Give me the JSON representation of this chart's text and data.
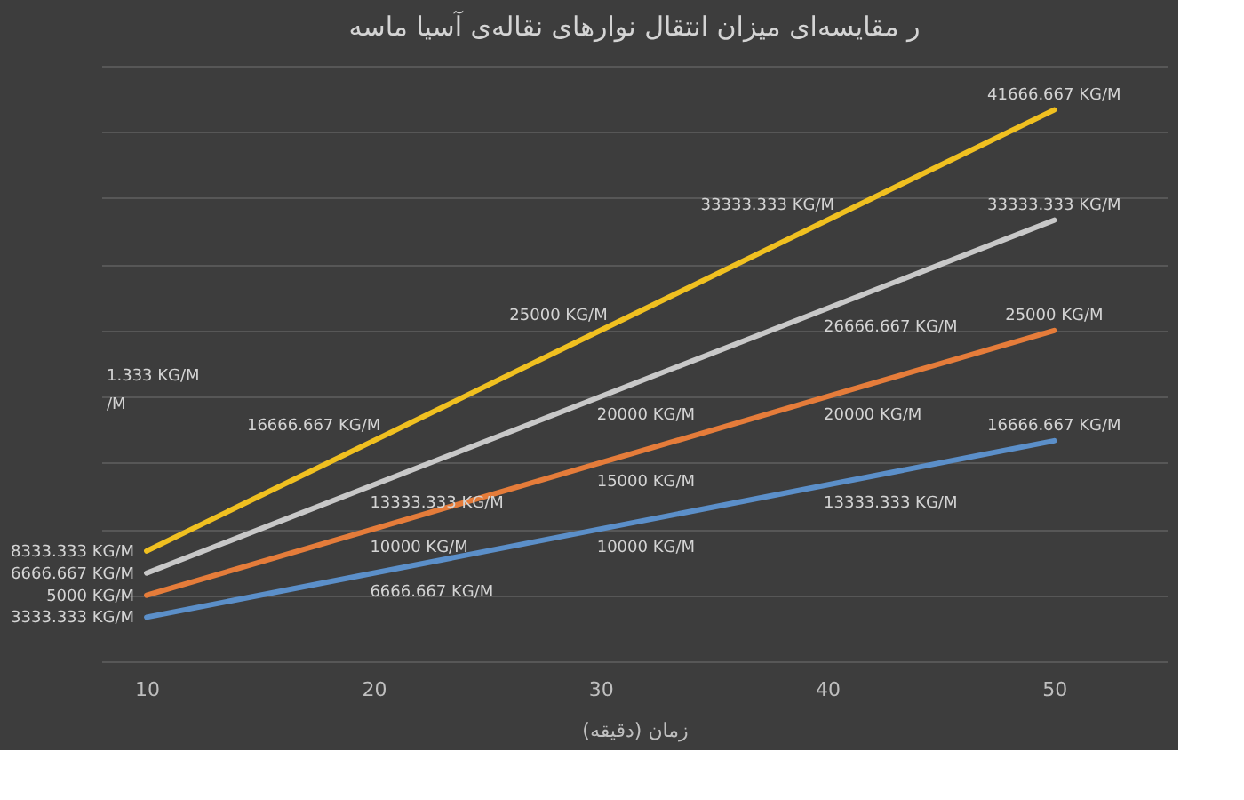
{
  "chart_data": {
    "type": "line",
    "title": "ر مقایسه‌ای میزان انتقال نوارهای نقاله‌ی آسیا ماسه",
    "xlabel": "زمان (دقیقه)",
    "x": [
      10,
      20,
      30,
      40,
      50
    ],
    "xlim": [
      8,
      55
    ],
    "xticks": [
      10,
      20,
      30,
      40,
      50
    ],
    "grid": "y",
    "tick_labels": "x",
    "marker": "none",
    "line_style": "solid",
    "legend": false,
    "series": [
      {
        "color": "#f0c020",
        "values": [
          8333.333,
          16666.667,
          25000,
          33333.333,
          41666.667
        ],
        "value_labels": [
          "8333.333 KG/M",
          "16666.667 KG/M",
          "25000 KG/M",
          "33333.333 KG/M",
          "41666.667 KG/M"
        ]
      },
      {
        "color": "#c8c8c8",
        "values": [
          6666.667,
          13333.333,
          20000,
          26666.667,
          33333.333
        ],
        "value_labels": [
          "6666.667 KG/M",
          "13333.333 KG/M",
          "20000 KG/M",
          "26666.667 KG/M",
          "33333.333 KG/M"
        ]
      },
      {
        "color": "#e57c3a",
        "values": [
          5000,
          10000,
          15000,
          20000,
          25000
        ],
        "value_labels": [
          "5000 KG/M",
          "10000 KG/M",
          "15000 KG/M",
          "20000 KG/M",
          "25000 KG/M"
        ]
      },
      {
        "color": "#5b8fc9",
        "values": [
          3333.333,
          6666.667,
          10000,
          13333.333,
          16666.667
        ],
        "value_labels": [
          "3333.333 KG/M",
          "6666.667 KG/M",
          "10000 KG/M",
          "13333.333 KG/M",
          "16666.667 KG/M"
        ]
      }
    ],
    "annotations": [
      "1.333 KG/M",
      "/M"
    ]
  }
}
